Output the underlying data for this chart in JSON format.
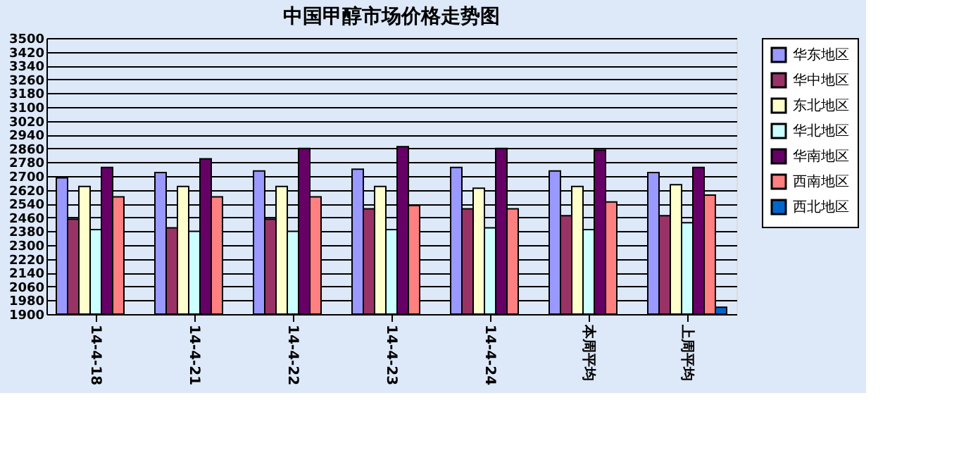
{
  "chart_data": {
    "type": "bar",
    "title": "中国甲醇市场价格走势图",
    "categories": [
      "14-4-18",
      "14-4-21",
      "14-4-22",
      "14-4-23",
      "14-4-24",
      "本周平均",
      "上周平均"
    ],
    "series": [
      {
        "name": "华东地区",
        "color": "#9999ff",
        "values": [
          2690,
          2720,
          2730,
          2740,
          2750,
          2730,
          2720
        ]
      },
      {
        "name": "华中地区",
        "color": "#993366",
        "values": [
          2450,
          2400,
          2450,
          2510,
          2510,
          2470,
          2470
        ]
      },
      {
        "name": "东北地区",
        "color": "#ffffcc",
        "values": [
          2640,
          2640,
          2640,
          2640,
          2630,
          2640,
          2650
        ]
      },
      {
        "name": "华北地区",
        "color": "#ccffff",
        "values": [
          2390,
          2380,
          2380,
          2390,
          2400,
          2390,
          2430
        ]
      },
      {
        "name": "华南地区",
        "color": "#660066",
        "values": [
          2750,
          2800,
          2860,
          2870,
          2860,
          2850,
          2750
        ]
      },
      {
        "name": "西南地区",
        "color": "#ff8080",
        "values": [
          2580,
          2580,
          2580,
          2530,
          2510,
          2550,
          2590
        ]
      },
      {
        "name": "西北地区",
        "color": "#0066cc",
        "values": [
          null,
          null,
          null,
          null,
          null,
          null,
          1940
        ]
      }
    ],
    "ylim": [
      1900,
      3500
    ],
    "yticks": [
      1900,
      1980,
      2060,
      2140,
      2220,
      2300,
      2380,
      2460,
      2540,
      2620,
      2700,
      2780,
      2860,
      2940,
      3020,
      3100,
      3180,
      3260,
      3340,
      3420,
      3500
    ],
    "grid": "y",
    "legend": "right"
  }
}
